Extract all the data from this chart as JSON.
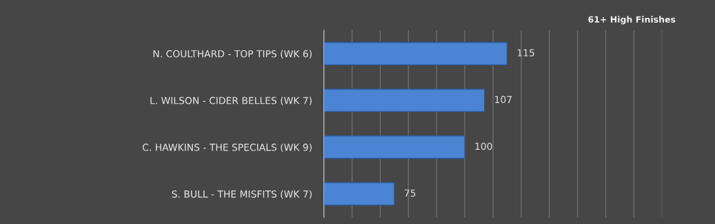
{
  "chart_data": {
    "type": "bar",
    "orientation": "horizontal",
    "title": "61+ High Finishes",
    "categories": [
      "N. COULTHARD - TOP TIPS (WK 6)",
      "L. WILSON - CIDER BELLES (WK 7)",
      "C. HAWKINS - THE SPECIALS (WK 9)",
      "S. BULL - THE MISFITS (WK 7)"
    ],
    "values": [
      115,
      107,
      100,
      75
    ],
    "color": "#4a84d2",
    "xlim": [
      50,
      170
    ],
    "xticks": [
      {
        "value": 50,
        "label": null
      },
      {
        "value": 60,
        "label": null
      },
      {
        "value": 70,
        "label": null
      },
      {
        "value": 80,
        "label": null
      },
      {
        "value": 90,
        "label": null
      },
      {
        "value": 100,
        "label": null
      },
      {
        "value": 110,
        "label": null
      },
      {
        "value": 120,
        "label": null
      },
      {
        "value": 130,
        "label": null
      },
      {
        "value": 140,
        "label": null
      },
      {
        "value": 150,
        "label": null
      },
      {
        "value": 160,
        "label": null
      },
      {
        "value": 170,
        "label": null
      }
    ],
    "grid": "x",
    "data_labels": true,
    "tick_labels": "y"
  }
}
